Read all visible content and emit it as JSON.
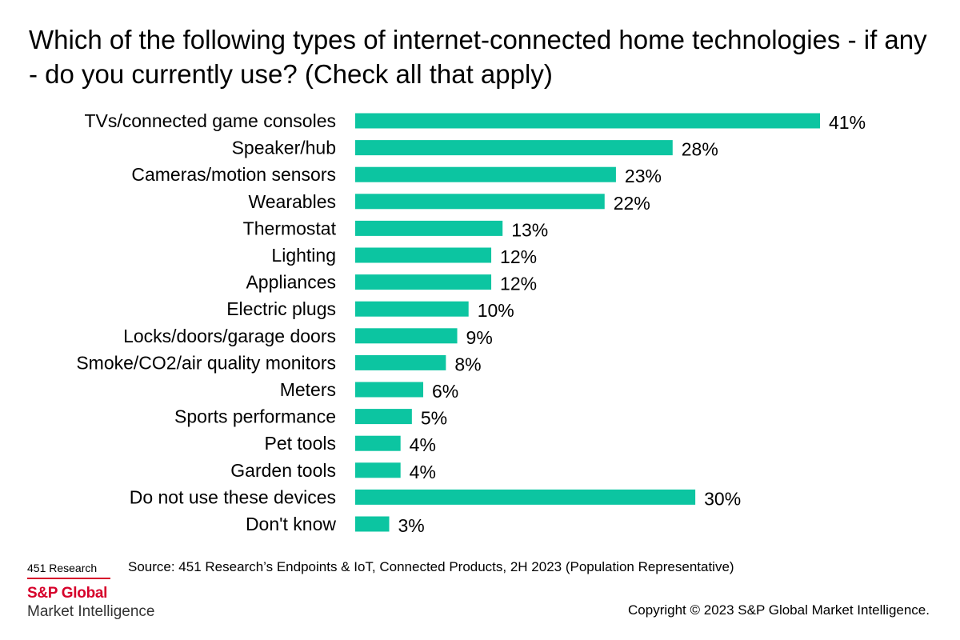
{
  "title": "Which of the following types of internet-connected home technologies - if any - do you currently use? (Check all that apply)",
  "chart_data": {
    "type": "bar",
    "orientation": "horizontal",
    "title": "Which of the following types of internet-connected home technologies - if any - do you currently use? (Check all that apply)",
    "categories": [
      "TVs/connected game consoles",
      "Speaker/hub",
      "Cameras/motion sensors",
      "Wearables",
      "Thermostat",
      "Lighting",
      "Appliances",
      "Electric plugs",
      "Locks/doors/garage doors",
      "Smoke/CO2/air quality monitors",
      "Meters",
      "Sports performance",
      "Pet tools",
      "Garden tools",
      "Do not use these devices",
      "Don't know"
    ],
    "values": [
      41,
      28,
      23,
      22,
      13,
      12,
      12,
      10,
      9,
      8,
      6,
      5,
      4,
      4,
      30,
      3
    ],
    "value_labels": [
      "41%",
      "28%",
      "23%",
      "22%",
      "13%",
      "12%",
      "12%",
      "10%",
      "9%",
      "8%",
      "6%",
      "5%",
      "4%",
      "4%",
      "30%",
      "3%"
    ],
    "xlim": [
      0,
      41
    ],
    "grid": false,
    "legend": "none",
    "bar_color": "#0cc5a1"
  },
  "footer": {
    "research": "451 Research",
    "source": "Source: 451 Research’s Endpoints & IoT, Connected Products, 2H 2023 (Population Representative)",
    "brand": "S&P Global",
    "brand_sub": "Market Intelligence",
    "copyright": "Copyright © 2023 S&P Global Market Intelligence."
  },
  "colors": {
    "bar": "#0cc5a1",
    "brand_red": "#d6002a"
  }
}
